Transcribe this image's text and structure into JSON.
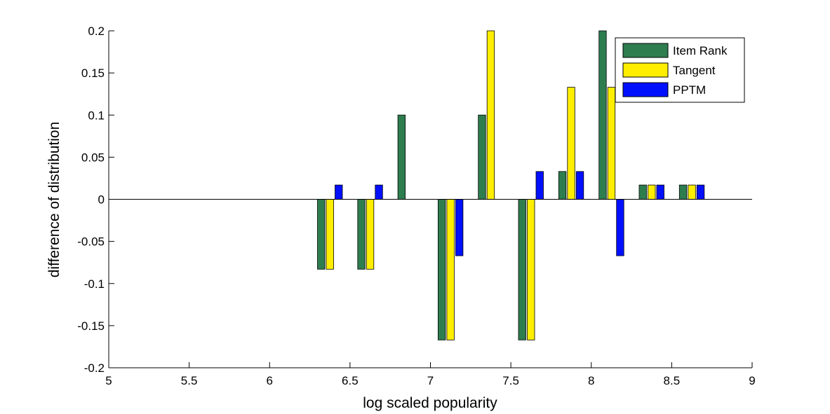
{
  "chart_data": {
    "type": "bar",
    "xlabel": "log scaled popularity",
    "ylabel": "difference of distribution",
    "xlim": [
      5,
      9
    ],
    "ylim": [
      -0.2,
      0.2
    ],
    "xticks": [
      5,
      5.5,
      6,
      6.5,
      7,
      7.5,
      8,
      8.5,
      9
    ],
    "xtick_labels": [
      "5",
      "5.5",
      "6",
      "6.5",
      "7",
      "7.5",
      "8",
      "8.5",
      "9"
    ],
    "yticks": [
      -0.2,
      -0.15,
      -0.1,
      -0.05,
      0,
      0.05,
      0.1,
      0.15,
      0.2
    ],
    "ytick_labels": [
      "-0.2",
      "-0.15",
      "-0.1",
      "-0.05",
      "0",
      "0.05",
      "0.1",
      "0.15",
      "0.2"
    ],
    "grid": false,
    "legend_position": "top-right",
    "x": [
      6.375,
      6.625,
      6.875,
      7.125,
      7.375,
      7.625,
      7.875,
      8.125,
      8.375,
      8.625
    ],
    "series": [
      {
        "name": "Item Rank",
        "color": "#2e7d4f",
        "values": [
          -0.083,
          -0.083,
          0.1,
          -0.167,
          0.1,
          -0.167,
          0.033,
          0.2,
          0.017,
          0.017
        ]
      },
      {
        "name": "Tangent",
        "color": "#ffee00",
        "values": [
          -0.083,
          -0.083,
          0,
          -0.167,
          0.2,
          -0.167,
          0.133,
          0.133,
          0.017,
          0.017
        ]
      },
      {
        "name": "PPTM",
        "color": "#0010ff",
        "values": [
          0.017,
          0.017,
          0,
          -0.067,
          0,
          0.033,
          0.033,
          -0.067,
          0.017,
          0.017
        ]
      }
    ]
  }
}
